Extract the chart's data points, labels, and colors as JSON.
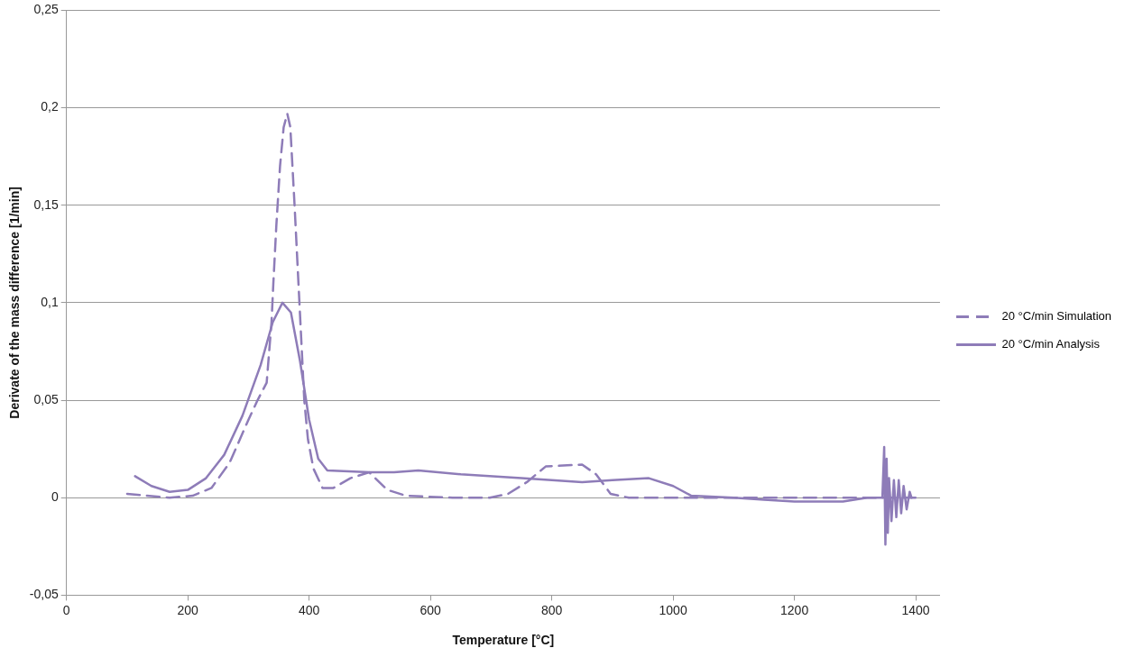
{
  "chart_data": {
    "type": "line",
    "xlabel": "Temperature [°C]",
    "ylabel": "Derivate of the mass difference [1/min]",
    "xlim": [
      0,
      1440
    ],
    "xticks": [
      0,
      200,
      400,
      600,
      800,
      1000,
      1200,
      1400
    ],
    "ylim": [
      -0.05,
      0.25
    ],
    "yticks": [
      {
        "value": -0.05,
        "label": "-0,05"
      },
      0,
      {
        "value": 0.05,
        "label": "0,05"
      },
      {
        "value": 0.1,
        "label": "0,1"
      },
      {
        "value": 0.15,
        "label": "0,15"
      },
      {
        "value": 0.2,
        "label": "0,2"
      },
      {
        "value": 0.25,
        "label": "0,25"
      }
    ],
    "grid": "y",
    "legend": "right",
    "marker": "none",
    "series": [
      {
        "name": "20 °C/min Simulation",
        "color": "#8e7cb8",
        "line_style": "dashed",
        "x": [
          100,
          132,
          170,
          208,
          239,
          269,
          300,
          315,
          330,
          338,
          341,
          346,
          352,
          358,
          364,
          369,
          376,
          384,
          392,
          398,
          407,
          422,
          440,
          468,
          499,
          529,
          560,
          636,
          698,
          728,
          759,
          790,
          850,
          873,
          897,
          927,
          1000,
          1100,
          1200,
          1300,
          1400
        ],
        "values": [
          0.002,
          0.001,
          0,
          0.001,
          0.005,
          0.018,
          0.04,
          0.05,
          0.059,
          0.09,
          0.11,
          0.14,
          0.17,
          0.19,
          0.197,
          0.19,
          0.15,
          0.1,
          0.05,
          0.03,
          0.015,
          0.005,
          0.005,
          0.01,
          0.013,
          0.004,
          0.001,
          0,
          0,
          0.002,
          0.008,
          0.016,
          0.017,
          0.012,
          0.002,
          0,
          0,
          0,
          0,
          0,
          0
        ]
      },
      {
        "name": "20 °C/min Analysis",
        "color": "#8e7cb8",
        "line_style": "solid",
        "x": [
          113,
          140,
          170,
          200,
          230,
          260,
          290,
          320,
          340,
          356,
          370,
          385,
          400,
          415,
          430,
          500,
          540,
          580,
          650,
          750,
          850,
          900,
          960,
          1000,
          1030,
          1100,
          1150,
          1200,
          1280,
          1320,
          1345,
          1348,
          1350,
          1352,
          1354,
          1356,
          1360,
          1364,
          1368,
          1372,
          1376,
          1380,
          1385,
          1390,
          1393
        ],
        "values": [
          0.011,
          0.006,
          0.003,
          0.004,
          0.01,
          0.022,
          0.042,
          0.068,
          0.09,
          0.1,
          0.095,
          0.07,
          0.04,
          0.02,
          0.014,
          0.013,
          0.013,
          0.014,
          0.012,
          0.01,
          0.008,
          0.009,
          0.01,
          0.006,
          0.001,
          0,
          -0.001,
          -0.002,
          -0.002,
          0,
          0,
          0.026,
          -0.024,
          0.02,
          -0.018,
          0.01,
          -0.012,
          0.009,
          -0.01,
          0.009,
          -0.008,
          0.006,
          -0.006,
          0.003,
          0
        ]
      }
    ]
  }
}
